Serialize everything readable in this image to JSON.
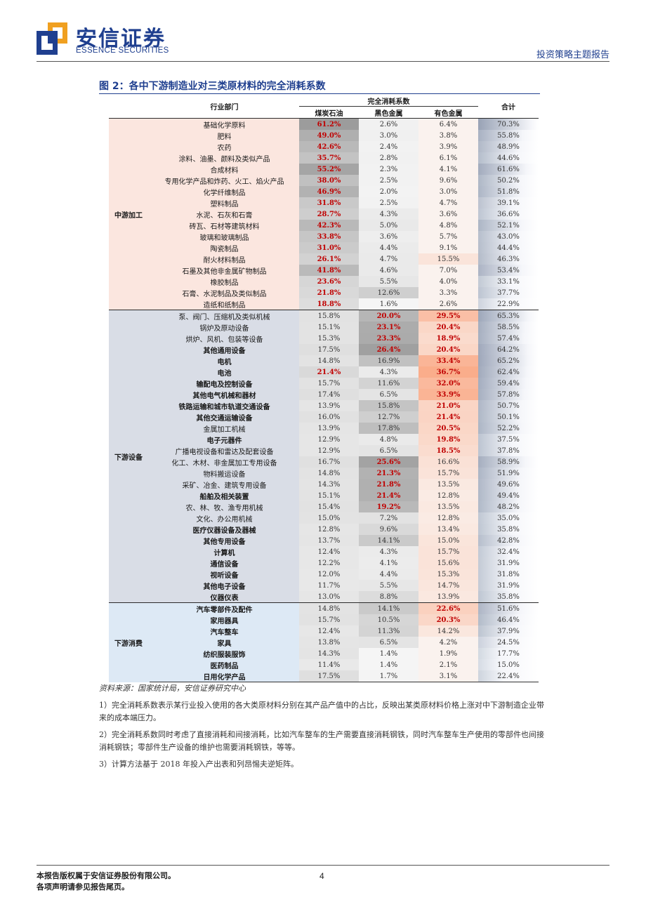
{
  "header": {
    "logo_cn": "安信证券",
    "logo_en": "ESSENCE SECURITIES",
    "report_type": "投资策略主题报告"
  },
  "figure": {
    "title": "图 2：各中下游制造业对三类原材料的完全消耗系数"
  },
  "table": {
    "col_industry": "行业部门",
    "col_group": "完全消耗系数",
    "col_coal": "煤炭石油",
    "col_ferrous": "黑色金属",
    "col_nonferrous": "有色金属",
    "col_total": "合计",
    "groups": [
      {
        "name": "中游加工",
        "rows": [
          {
            "industry": "基础化学原料",
            "coal": "61.2%",
            "ferrous": "2.6%",
            "nonferrous": "6.4%",
            "total": "70.3%"
          },
          {
            "industry": "肥料",
            "coal": "49.0%",
            "ferrous": "3.0%",
            "nonferrous": "3.8%",
            "total": "55.8%"
          },
          {
            "industry": "农药",
            "coal": "42.6%",
            "ferrous": "2.4%",
            "nonferrous": "3.9%",
            "total": "48.9%"
          },
          {
            "industry": "涂料、油墨、颜料及类似产品",
            "coal": "35.7%",
            "ferrous": "2.8%",
            "nonferrous": "6.1%",
            "total": "44.6%"
          },
          {
            "industry": "合成材料",
            "coal": "55.2%",
            "ferrous": "2.3%",
            "nonferrous": "4.1%",
            "total": "61.6%"
          },
          {
            "industry": "专用化学产品和炸药、火工、焰火产品",
            "coal": "38.0%",
            "ferrous": "2.5%",
            "nonferrous": "9.6%",
            "total": "50.2%"
          },
          {
            "industry": "化学纤维制品",
            "coal": "46.9%",
            "ferrous": "2.0%",
            "nonferrous": "3.0%",
            "total": "51.8%"
          },
          {
            "industry": "塑料制品",
            "coal": "31.8%",
            "ferrous": "2.5%",
            "nonferrous": "4.7%",
            "total": "39.1%"
          },
          {
            "industry": "水泥、石灰和石膏",
            "coal": "28.7%",
            "ferrous": "4.3%",
            "nonferrous": "3.6%",
            "total": "36.6%"
          },
          {
            "industry": "砖瓦、石材等建筑材料",
            "coal": "42.3%",
            "ferrous": "5.0%",
            "nonferrous": "4.8%",
            "total": "52.1%"
          },
          {
            "industry": "玻璃和玻璃制品",
            "coal": "33.8%",
            "ferrous": "3.6%",
            "nonferrous": "5.7%",
            "total": "43.0%"
          },
          {
            "industry": "陶瓷制品",
            "coal": "31.0%",
            "ferrous": "4.4%",
            "nonferrous": "9.1%",
            "total": "44.4%"
          },
          {
            "industry": "耐火材料制品",
            "coal": "26.1%",
            "ferrous": "4.7%",
            "nonferrous": "15.5%",
            "total": "46.3%"
          },
          {
            "industry": "石墨及其他非金属矿物制品",
            "coal": "41.8%",
            "ferrous": "4.6%",
            "nonferrous": "7.0%",
            "total": "53.4%"
          },
          {
            "industry": "橡胶制品",
            "coal": "23.6%",
            "ferrous": "5.5%",
            "nonferrous": "4.0%",
            "total": "33.1%"
          },
          {
            "industry": "石膏、水泥制品及类似制品",
            "coal": "21.8%",
            "ferrous": "12.6%",
            "nonferrous": "3.3%",
            "total": "37.7%"
          },
          {
            "industry": "造纸和纸制品",
            "coal": "18.8%",
            "ferrous": "1.6%",
            "nonferrous": "2.6%",
            "total": "22.9%"
          }
        ]
      },
      {
        "name": "下游设备",
        "rows": [
          {
            "industry": "泵、阀门、压缩机及类似机械",
            "coal": "15.8%",
            "ferrous": "20.0%",
            "nonferrous": "29.5%",
            "total": "65.3%"
          },
          {
            "industry": "锅炉及原动设备",
            "coal": "15.1%",
            "ferrous": "23.1%",
            "nonferrous": "20.4%",
            "total": "58.5%"
          },
          {
            "industry": "烘炉、风机、包装等设备",
            "coal": "15.3%",
            "ferrous": "23.3%",
            "nonferrous": "18.9%",
            "total": "57.4%"
          },
          {
            "industry": "其他通用设备",
            "coal": "17.5%",
            "ferrous": "26.4%",
            "nonferrous": "20.4%",
            "total": "64.2%"
          },
          {
            "industry": "电机",
            "coal": "14.8%",
            "ferrous": "16.9%",
            "nonferrous": "33.4%",
            "total": "65.2%"
          },
          {
            "industry": "电池",
            "coal": "21.4%",
            "ferrous": "4.3%",
            "nonferrous": "36.7%",
            "total": "62.4%"
          },
          {
            "industry": "输配电及控制设备",
            "coal": "15.7%",
            "ferrous": "11.6%",
            "nonferrous": "32.0%",
            "total": "59.4%"
          },
          {
            "industry": "其他电气机械和器材",
            "coal": "17.4%",
            "ferrous": "6.5%",
            "nonferrous": "33.9%",
            "total": "57.8%"
          },
          {
            "industry": "铁路运输和城市轨道交通设备",
            "coal": "13.9%",
            "ferrous": "15.8%",
            "nonferrous": "21.0%",
            "total": "50.7%"
          },
          {
            "industry": "其他交通运输设备",
            "coal": "16.0%",
            "ferrous": "12.7%",
            "nonferrous": "21.4%",
            "total": "50.1%"
          },
          {
            "industry": "金属加工机械",
            "coal": "13.9%",
            "ferrous": "17.8%",
            "nonferrous": "20.5%",
            "total": "52.2%"
          },
          {
            "industry": "电子元器件",
            "coal": "12.9%",
            "ferrous": "4.8%",
            "nonferrous": "19.8%",
            "total": "37.5%"
          },
          {
            "industry": "广播电视设备和雷达及配套设备",
            "coal": "12.9%",
            "ferrous": "6.5%",
            "nonferrous": "18.5%",
            "total": "37.8%"
          },
          {
            "industry": "化工、木材、非金属加工专用设备",
            "coal": "16.7%",
            "ferrous": "25.6%",
            "nonferrous": "16.6%",
            "total": "58.9%"
          },
          {
            "industry": "物料搬运设备",
            "coal": "14.8%",
            "ferrous": "21.3%",
            "nonferrous": "15.7%",
            "total": "51.9%"
          },
          {
            "industry": "采矿、冶金、建筑专用设备",
            "coal": "14.3%",
            "ferrous": "21.8%",
            "nonferrous": "13.5%",
            "total": "49.6%"
          },
          {
            "industry": "船舶及相关装置",
            "coal": "15.1%",
            "ferrous": "21.4%",
            "nonferrous": "12.8%",
            "total": "49.4%"
          },
          {
            "industry": "农、林、牧、渔专用机械",
            "coal": "15.4%",
            "ferrous": "19.2%",
            "nonferrous": "13.5%",
            "total": "48.2%"
          },
          {
            "industry": "文化、办公用机械",
            "coal": "15.0%",
            "ferrous": "7.2%",
            "nonferrous": "12.8%",
            "total": "35.0%"
          },
          {
            "industry": "医疗仪器设备及器械",
            "coal": "12.8%",
            "ferrous": "9.6%",
            "nonferrous": "13.4%",
            "total": "35.8%"
          },
          {
            "industry": "其他专用设备",
            "coal": "13.7%",
            "ferrous": "14.1%",
            "nonferrous": "15.0%",
            "total": "42.8%"
          },
          {
            "industry": "计算机",
            "coal": "12.4%",
            "ferrous": "4.3%",
            "nonferrous": "15.7%",
            "total": "32.4%"
          },
          {
            "industry": "通信设备",
            "coal": "12.2%",
            "ferrous": "4.1%",
            "nonferrous": "15.6%",
            "total": "31.9%"
          },
          {
            "industry": "视听设备",
            "coal": "12.0%",
            "ferrous": "4.4%",
            "nonferrous": "15.3%",
            "total": "31.8%"
          },
          {
            "industry": "其他电子设备",
            "coal": "11.7%",
            "ferrous": "5.5%",
            "nonferrous": "14.7%",
            "total": "31.9%"
          },
          {
            "industry": "仪器仪表",
            "coal": "13.0%",
            "ferrous": "8.8%",
            "nonferrous": "13.9%",
            "total": "35.8%"
          }
        ]
      },
      {
        "name": "下游消费",
        "rows": [
          {
            "industry": "汽车零部件及配件",
            "coal": "14.8%",
            "ferrous": "14.1%",
            "nonferrous": "22.6%",
            "total": "51.6%"
          },
          {
            "industry": "家用器具",
            "coal": "15.7%",
            "ferrous": "10.5%",
            "nonferrous": "20.3%",
            "total": "46.4%"
          },
          {
            "industry": "汽车整车",
            "coal": "12.4%",
            "ferrous": "11.3%",
            "nonferrous": "14.2%",
            "total": "37.9%"
          },
          {
            "industry": "家具",
            "coal": "13.8%",
            "ferrous": "6.5%",
            "nonferrous": "4.2%",
            "total": "24.5%"
          },
          {
            "industry": "纺织服装服饰",
            "coal": "14.3%",
            "ferrous": "1.4%",
            "nonferrous": "1.9%",
            "total": "17.7%"
          },
          {
            "industry": "医药制品",
            "coal": "11.4%",
            "ferrous": "1.4%",
            "nonferrous": "2.1%",
            "total": "15.0%"
          },
          {
            "industry": "日用化学产品",
            "coal": "17.5%",
            "ferrous": "1.7%",
            "nonferrous": "3.1%",
            "total": "22.4%"
          }
        ]
      }
    ]
  },
  "notes": {
    "source": "资料来源：国家统计局，安信证券研究中心",
    "note1": "1）完全消耗系数表示某行业投入使用的各大类原材料分别在其产品产值中的占比，反映出某类原材料价格上涨对中下游制造企业带来的成本端压力。",
    "note2": "2）完全消耗系数同时考虑了直接消耗和间接消耗，比如汽车整车的生产需要直接消耗钢铁，同时汽车整车生产使用的零部件也间接消耗钢铁；零部件生产设备的维护也需要消耗钢铁，等等。",
    "note3": "3）计算方法基于 2018 年投入产出表和列昂惕夫逆矩阵。"
  },
  "footer": {
    "line1": "本报告版权属于安信证券股份有限公司。",
    "line2": "各项声明请参见报告尾页。",
    "page": "4"
  }
}
